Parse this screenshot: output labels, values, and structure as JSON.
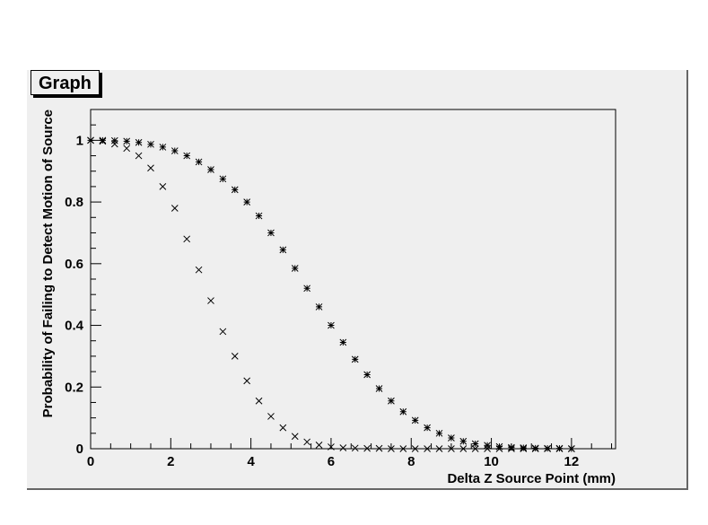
{
  "chart_data": {
    "type": "scatter",
    "title": "Graph",
    "xlabel": "Delta Z Source Point (mm)",
    "ylabel": "Probability of Failing to Detect Motion of Source",
    "xlim": [
      0,
      13.1
    ],
    "ylim": [
      0,
      1.1
    ],
    "xticks": [
      0,
      2,
      4,
      6,
      8,
      10,
      12
    ],
    "yticks": [
      0,
      0.2,
      0.4,
      0.6,
      0.8,
      1
    ],
    "grid": false,
    "legend": "none",
    "series": [
      {
        "marker": "x",
        "x": [
          0,
          0.3,
          0.6,
          0.9,
          1.2,
          1.5,
          1.8,
          2.1,
          2.4,
          2.7,
          3.0,
          3.3,
          3.6,
          3.9,
          4.2,
          4.5,
          4.8,
          5.1,
          5.4,
          5.7,
          6.0,
          6.3,
          6.6,
          6.9,
          7.2,
          7.5,
          7.8,
          8.1,
          8.4,
          8.7,
          9.0,
          9.3,
          9.6,
          9.9,
          10.2,
          10.5,
          10.8,
          11.1,
          11.4,
          11.7,
          12.0
        ],
        "y": [
          1.0,
          0.997,
          0.988,
          0.974,
          0.95,
          0.91,
          0.85,
          0.78,
          0.68,
          0.58,
          0.48,
          0.38,
          0.3,
          0.22,
          0.155,
          0.105,
          0.068,
          0.04,
          0.022,
          0.012,
          0.006,
          0.003,
          0.002,
          0.001,
          0.001,
          0.0,
          0.0,
          0.0,
          0.0,
          0.0,
          0.0,
          0.0,
          0.0,
          0.0,
          0.0,
          0.0,
          0.0,
          0.0,
          0.0,
          0.0,
          0.0
        ]
      },
      {
        "marker": "asterisk",
        "x": [
          0,
          0.3,
          0.6,
          0.9,
          1.2,
          1.5,
          1.8,
          2.1,
          2.4,
          2.7,
          3.0,
          3.3,
          3.6,
          3.9,
          4.2,
          4.5,
          4.8,
          5.1,
          5.4,
          5.7,
          6.0,
          6.3,
          6.6,
          6.9,
          7.2,
          7.5,
          7.8,
          8.1,
          8.4,
          8.7,
          9.0,
          9.3,
          9.6,
          9.9,
          10.2,
          10.5,
          10.8,
          11.1,
          11.4,
          11.7,
          12.0
        ],
        "y": [
          1.0,
          1.0,
          0.999,
          0.997,
          0.993,
          0.987,
          0.978,
          0.966,
          0.95,
          0.93,
          0.905,
          0.875,
          0.84,
          0.8,
          0.755,
          0.7,
          0.645,
          0.585,
          0.52,
          0.46,
          0.4,
          0.345,
          0.29,
          0.24,
          0.195,
          0.155,
          0.12,
          0.092,
          0.068,
          0.05,
          0.035,
          0.024,
          0.016,
          0.011,
          0.007,
          0.004,
          0.003,
          0.002,
          0.001,
          0.001,
          0.0
        ]
      }
    ]
  }
}
